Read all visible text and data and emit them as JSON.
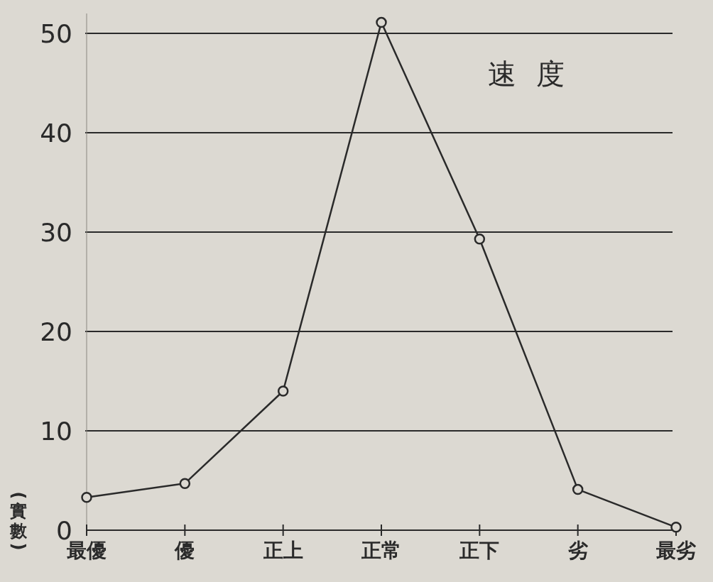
{
  "chart_data": {
    "type": "line",
    "title": "速度",
    "ylabel": "(實數)",
    "categories": [
      "最優",
      "優",
      "正上",
      "正常",
      "正下",
      "劣",
      "最劣"
    ],
    "series": [
      {
        "color": "#2a2a2a",
        "values": [
          3.3,
          4.7,
          14.0,
          51.1,
          29.3,
          4.1,
          0.3
        ]
      }
    ],
    "ylim": [
      0,
      52
    ],
    "yticks": [
      0,
      10,
      20,
      30,
      40,
      50
    ],
    "grid": "y",
    "marker": "circle",
    "line_style": "solid"
  }
}
